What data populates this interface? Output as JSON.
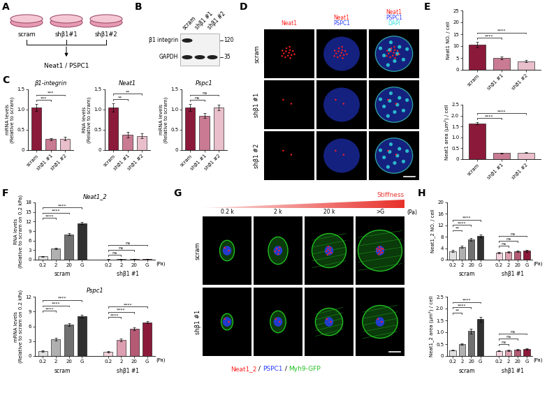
{
  "panel_labels": [
    "A",
    "B",
    "C",
    "D",
    "E",
    "F",
    "G",
    "H"
  ],
  "schematic": {
    "dishes": [
      "scram",
      "shβ1#1",
      "shβ1#2"
    ],
    "readout": "Neat1 / PSPC1",
    "color": "#e79ab4"
  },
  "blot": {
    "lanes": [
      "scram",
      "shβ1 #1",
      "shβ1 #2"
    ],
    "rows": [
      {
        "name": "β1 integrin",
        "mw": "120",
        "bands": [
          true,
          false,
          false
        ]
      },
      {
        "name": "GAPDH",
        "mw": "35",
        "bands": [
          true,
          true,
          true
        ]
      }
    ]
  },
  "imaging_d": {
    "columns": [
      [
        "Neat1"
      ],
      [
        "Neat1",
        "PSPC1"
      ],
      [
        "Neat1",
        "PSPC1",
        "DAPI"
      ]
    ],
    "rows": [
      "scram",
      "shβ1 #1",
      "shβ1 #2"
    ],
    "channel_colors": {
      "Neat1": "#ff2020",
      "PSPC1": "#2a3cff",
      "DAPI": "#30e0e0"
    }
  },
  "imaging_g": {
    "gradient_label": "Stiffness",
    "columns": [
      "0.2 k",
      "2 k",
      "20 k",
      ">G"
    ],
    "unit": "(Pa)",
    "rows": [
      "scram",
      "shβ1 #1"
    ],
    "channels": [
      "Neat1_2",
      "PSPC1",
      "Myh9-GFP"
    ],
    "separator": " / ",
    "channel_colors": {
      "Neat1_2": "#ff2020",
      "PSPC1": "#2a3cff",
      "Myh9-GFP": "#20c020"
    }
  },
  "chart_data": [
    {
      "type": "bar",
      "title": "β1-integrin",
      "y_label": "mRNA levels\n(Relative to scram)",
      "categories": [
        "scram",
        "shβ1 #1",
        "shβ1 #2"
      ],
      "ylim": [
        0,
        1.5
      ],
      "yticks": [
        0,
        0.5,
        {
          "value": 1,
          "label": "1.0"
        },
        1.5
      ],
      "series": [
        {
          "values": [
            1.05,
            0.27,
            0.28
          ],
          "errors": [
            0.08,
            0.03,
            0.04
          ],
          "colors": [
            "#8b1a3a",
            "#c97b93",
            "#e8bfcb"
          ],
          "significance": [
            null,
            "***",
            "***"
          ]
        }
      ]
    },
    {
      "type": "bar",
      "title": "Neat1",
      "y_label": "RNA levels\n(Relative to scram)",
      "categories": [
        "scram",
        "shβ1 #1",
        "shβ1 #2"
      ],
      "ylim": [
        0,
        1.5
      ],
      "yticks": [
        0,
        0.5,
        {
          "value": 1,
          "label": "1.0"
        },
        1.5
      ],
      "series": [
        {
          "values": [
            1.05,
            0.38,
            0.35
          ],
          "errors": [
            0.1,
            0.07,
            0.06
          ],
          "colors": [
            "#8b1a3a",
            "#c97b93",
            "#e8bfcb"
          ],
          "significance": [
            null,
            "**",
            "**"
          ]
        }
      ]
    },
    {
      "type": "bar",
      "title": "Pspc1",
      "y_label": "mRNA levels\n(Relative to scram)",
      "categories": [
        "scram",
        "shβ1 #1",
        "shβ1 #2"
      ],
      "ylim": [
        0,
        1.5
      ],
      "yticks": [
        0,
        0.5,
        {
          "value": 1,
          "label": "1.0"
        },
        1.5
      ],
      "series": [
        {
          "values": [
            1.05,
            0.85,
            1.05
          ],
          "errors": [
            0.08,
            0.06,
            0.07
          ],
          "colors": [
            "#8b1a3a",
            "#c97b93",
            "#e8bfcb"
          ],
          "significance": [
            null,
            "ns",
            "ns"
          ]
        }
      ]
    },
    {
      "type": "bar",
      "y_label": "Neat1 NO. / cell",
      "categories": [
        "scram",
        "shβ1 #1",
        "shβ1 #2"
      ],
      "ylim": [
        0,
        25
      ],
      "yticks": [
        0,
        5,
        10,
        15,
        20,
        25
      ],
      "series": [
        {
          "values": [
            10.5,
            5.0,
            3.6
          ],
          "errors": [
            1.2,
            0.5,
            0.4
          ],
          "colors": [
            "#8b1a3a",
            "#c97b93",
            "#e8bfcb"
          ],
          "significance": [
            null,
            "****",
            "****"
          ]
        }
      ]
    },
    {
      "type": "bar",
      "y_label": "Neat1 area (µm²) / cell",
      "categories": [
        "scram",
        "shβ1 #1",
        "shβ1 #2"
      ],
      "ylim": [
        0,
        2.5
      ],
      "yticks": [
        0,
        0.5,
        {
          "value": 1,
          "label": "1.0"
        },
        1.5,
        {
          "value": 2,
          "label": "2.0"
        },
        2.5
      ],
      "series": [
        {
          "values": [
            1.65,
            0.28,
            0.3
          ],
          "errors": [
            0.06,
            0.02,
            0.02
          ],
          "colors": [
            "#8b1a3a",
            "#c97b93",
            "#e8bfcb"
          ],
          "significance": [
            null,
            "****",
            "****"
          ]
        }
      ]
    },
    {
      "type": "bar",
      "title": "Neat1_2",
      "y_label": "RNA levels\n(Relative to scram on 0.2 kPa)",
      "x_label": "(Pa)",
      "categories": [
        "0.2",
        "2",
        "20",
        "G"
      ],
      "ylim": [
        0,
        18
      ],
      "yticks": [
        0,
        3,
        6,
        9,
        12,
        15,
        18
      ],
      "series": [
        {
          "name": "scram",
          "values": [
            1.0,
            3.5,
            8.0,
            11.5
          ],
          "errors": [
            0.1,
            0.3,
            0.4,
            0.4
          ],
          "colors": [
            "#e0e0e0",
            "#b0b0b0",
            "#707070",
            "#303030"
          ],
          "significance": [
            null,
            "****",
            "****",
            "****"
          ]
        },
        {
          "name": "shβ1 #1",
          "values": [
            0.1,
            0.12,
            0.13,
            0.15
          ],
          "errors": [
            0.02,
            0.02,
            0.02,
            0.02
          ],
          "colors": [
            "#f3d3dc",
            "#dc9fb1",
            "#b45a74",
            "#8b1a3a"
          ],
          "significance": [
            null,
            "ns",
            "ns",
            "ns"
          ]
        }
      ]
    },
    {
      "type": "bar",
      "title": "Pspc1",
      "y_label": "mRNA levels\n(Relative to scram on 0.2 kPa)",
      "x_label": "(Pa)",
      "categories": [
        "0.2",
        "2",
        "20",
        "G"
      ],
      "ylim": [
        0,
        12
      ],
      "yticks": [
        0,
        3,
        6,
        9,
        12
      ],
      "series": [
        {
          "name": "scram",
          "values": [
            1.0,
            3.4,
            6.4,
            8.0
          ],
          "errors": [
            0.15,
            0.3,
            0.3,
            0.3
          ],
          "colors": [
            "#e0e0e0",
            "#b0b0b0",
            "#707070",
            "#303030"
          ],
          "significance": [
            null,
            "****",
            "****",
            "****"
          ]
        },
        {
          "name": "shβ1 #1",
          "values": [
            0.9,
            3.2,
            5.5,
            6.8
          ],
          "errors": [
            0.15,
            0.3,
            0.3,
            0.2
          ],
          "colors": [
            "#f3d3dc",
            "#dc9fb1",
            "#b45a74",
            "#8b1a3a"
          ],
          "significance": [
            null,
            "****",
            "****",
            "****"
          ]
        }
      ]
    },
    {
      "type": "bar",
      "y_label": "Neat1_2 NO. / cell",
      "x_label": "(Pa)",
      "categories": [
        "0.2",
        "2",
        "20",
        "G"
      ],
      "ylim": [
        0,
        20
      ],
      "yticks": [
        0,
        4,
        8,
        12,
        16,
        20
      ],
      "series": [
        {
          "name": "scram",
          "values": [
            3.0,
            4.5,
            7.0,
            8.3
          ],
          "errors": [
            0.3,
            0.4,
            0.5,
            0.6
          ],
          "colors": [
            "#e0e0e0",
            "#b0b0b0",
            "#707070",
            "#303030"
          ],
          "significance": [
            null,
            "**",
            "****",
            "****"
          ]
        },
        {
          "name": "shβ1 #1",
          "values": [
            2.5,
            2.7,
            2.9,
            3.1
          ],
          "errors": [
            0.2,
            0.2,
            0.3,
            0.3
          ],
          "colors": [
            "#f3d3dc",
            "#dc9fb1",
            "#b45a74",
            "#8b1a3a"
          ],
          "significance": [
            null,
            "ns",
            "ns",
            "ns"
          ]
        }
      ]
    },
    {
      "type": "bar",
      "y_label": "Neat1_2 area (µm²) / cell",
      "x_label": "(Pa)",
      "categories": [
        "0.2",
        "2",
        "20",
        "G"
      ],
      "ylim": [
        0,
        2.5
      ],
      "yticks": [
        0,
        0.5,
        {
          "value": 1,
          "label": "1.0"
        },
        1.5,
        {
          "value": 2,
          "label": "2.0"
        },
        2.5
      ],
      "series": [
        {
          "name": "scram",
          "values": [
            0.25,
            0.5,
            1.05,
            1.55
          ],
          "errors": [
            0.02,
            0.04,
            0.1,
            0.1
          ],
          "colors": [
            "#e0e0e0",
            "#b0b0b0",
            "#707070",
            "#303030"
          ],
          "significance": [
            null,
            "**",
            "****",
            "****"
          ]
        },
        {
          "name": "shβ1 #1",
          "values": [
            0.22,
            0.24,
            0.27,
            0.3
          ],
          "errors": [
            0.02,
            0.02,
            0.03,
            0.03
          ],
          "colors": [
            "#f3d3dc",
            "#dc9fb1",
            "#b45a74",
            "#8b1a3a"
          ],
          "significance": [
            null,
            "ns",
            "ns",
            "ns"
          ]
        }
      ]
    }
  ]
}
